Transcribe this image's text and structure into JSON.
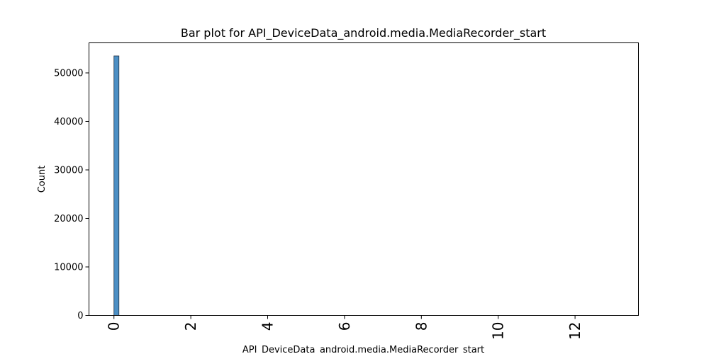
{
  "chart_data": {
    "type": "bar",
    "title": "Bar plot for API_DeviceData_android.media.MediaRecorder_start",
    "xlabel": "API_DeviceData_android.media.MediaRecorder_start",
    "ylabel": "Count",
    "xlim": [
      -0.65,
      13.65
    ],
    "ylim": [
      0,
      56200
    ],
    "x_ticks": [
      0,
      2,
      4,
      6,
      8,
      10,
      12
    ],
    "x_tick_labels": [
      "0",
      "2",
      "4",
      "6",
      "8",
      "10",
      "12"
    ],
    "y_ticks": [
      0,
      10000,
      20000,
      30000,
      40000,
      50000
    ],
    "y_tick_labels": [
      "0",
      "10000",
      "20000",
      "30000",
      "40000",
      "50000"
    ],
    "bars": [
      {
        "x_start": 0.0,
        "x_end": 0.13,
        "value": 53500
      },
      {
        "x_start": 0.13,
        "x_end": 0.26,
        "value": 0
      },
      {
        "x_start": 0.26,
        "x_end": 0.39,
        "value": 0
      },
      {
        "x_start": 0.39,
        "x_end": 0.52,
        "value": 0
      },
      {
        "x_start": 0.52,
        "x_end": 0.65,
        "value": 0
      },
      {
        "x_start": 0.65,
        "x_end": 0.78,
        "value": 0
      },
      {
        "x_start": 0.78,
        "x_end": 0.91,
        "value": 0
      },
      {
        "x_start": 0.91,
        "x_end": 1.04,
        "value": 0
      },
      {
        "x_start": 1.04,
        "x_end": 1.17,
        "value": 0
      },
      {
        "x_start": 1.17,
        "x_end": 1.3,
        "value": 0
      },
      {
        "x_start": 12.87,
        "x_end": 13.0,
        "value": 1
      }
    ],
    "bar_color": "#4c8fc4",
    "bar_edge_color": "#1f2f3f",
    "grid": false,
    "legend": "none"
  }
}
